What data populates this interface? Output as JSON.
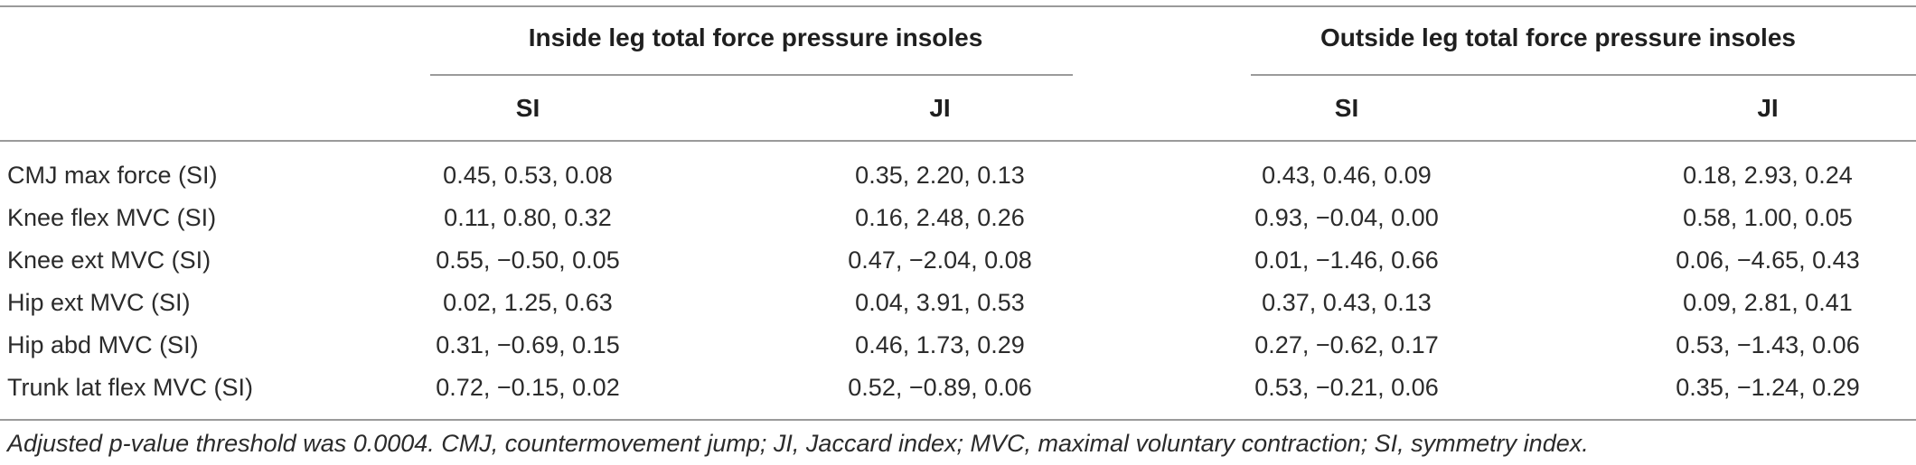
{
  "table": {
    "group_headers": [
      "Inside leg total force pressure insoles",
      "Outside leg total force pressure insoles"
    ],
    "sub_headers": [
      "SI",
      "JI",
      "SI",
      "JI"
    ],
    "rows": [
      {
        "label": "CMJ max force (SI)",
        "cells": [
          "0.45, 0.53, 0.08",
          "0.35, 2.20, 0.13",
          "0.43, 0.46, 0.09",
          "0.18, 2.93, 0.24"
        ]
      },
      {
        "label": "Knee flex MVC (SI)",
        "cells": [
          "0.11, 0.80, 0.32",
          "0.16, 2.48, 0.26",
          "0.93, −0.04, 0.00",
          "0.58, 1.00, 0.05"
        ]
      },
      {
        "label": "Knee ext MVC (SI)",
        "cells": [
          "0.55, −0.50, 0.05",
          "0.47, −2.04, 0.08",
          "0.01, −1.46, 0.66",
          "0.06, −4.65, 0.43"
        ]
      },
      {
        "label": "Hip ext MVC (SI)",
        "cells": [
          "0.02, 1.25, 0.63",
          "0.04, 3.91, 0.53",
          "0.37, 0.43, 0.13",
          "0.09, 2.81, 0.41"
        ]
      },
      {
        "label": "Hip abd MVC (SI)",
        "cells": [
          "0.31, −0.69, 0.15",
          "0.46, 1.73, 0.29",
          "0.27, −0.62, 0.17",
          "0.53, −1.43, 0.06"
        ]
      },
      {
        "label": "Trunk lat flex MVC (SI)",
        "cells": [
          "0.72, −0.15, 0.02",
          "0.52, −0.89, 0.06",
          "0.53, −0.21, 0.06",
          "0.35, −1.24, 0.29"
        ]
      }
    ],
    "footnote": "Adjusted p-value threshold was 0.0004. CMJ, countermovement jump; JI, Jaccard index; MVC, maximal voluntary contraction; SI, symmetry index."
  }
}
